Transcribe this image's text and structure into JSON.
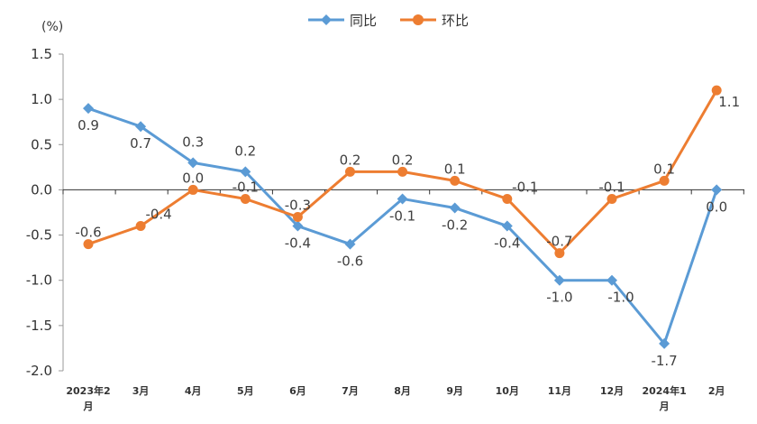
{
  "chart_data": {
    "type": "line",
    "y_unit_label": "(%)",
    "categories": [
      [
        "2023年2",
        "月"
      ],
      [
        "3月"
      ],
      [
        "4月"
      ],
      [
        "5月"
      ],
      [
        "6月"
      ],
      [
        "7月"
      ],
      [
        "8月"
      ],
      [
        "9月"
      ],
      [
        "10月"
      ],
      [
        "11月"
      ],
      [
        "12月"
      ],
      [
        "2024年1",
        "月"
      ],
      [
        "2月"
      ]
    ],
    "ylim": [
      -2.0,
      1.5
    ],
    "yticks": [
      1.5,
      1.0,
      0.5,
      0.0,
      -0.5,
      -1.0,
      -1.5,
      -2.0
    ],
    "ytick_labels": [
      "1.5",
      "1.0",
      "0.5",
      "0.0",
      "-0.5",
      "-1.0",
      "-1.5",
      "-2.0"
    ],
    "legend_position": "top-center",
    "series": [
      {
        "name": "同比",
        "color": "#5B9BD5",
        "marker": "diamond",
        "values": [
          0.9,
          0.7,
          0.3,
          0.2,
          -0.4,
          -0.6,
          -0.1,
          -0.2,
          -0.4,
          -1.0,
          -1.0,
          -1.7,
          0.0
        ],
        "labels": [
          "0.9",
          "0.7",
          "0.3",
          "0.2",
          "-0.4",
          "-0.6",
          "-0.1",
          "-0.2",
          "-0.4",
          "-1.0",
          "-1.0",
          "-1.7",
          "0.0"
        ]
      },
      {
        "name": "环比",
        "color": "#ED7D31",
        "marker": "circle",
        "values": [
          -0.6,
          -0.4,
          0.0,
          -0.1,
          -0.3,
          0.2,
          0.2,
          0.1,
          -0.1,
          -0.7,
          -0.1,
          0.1,
          1.1
        ],
        "labels": [
          "-0.6",
          "-0.4",
          "0.0",
          "-0.1",
          "-0.3",
          "0.2",
          "0.2",
          "0.1",
          "-0.1",
          "-0.7",
          "-0.1",
          "0.1",
          "1.1"
        ]
      }
    ]
  }
}
